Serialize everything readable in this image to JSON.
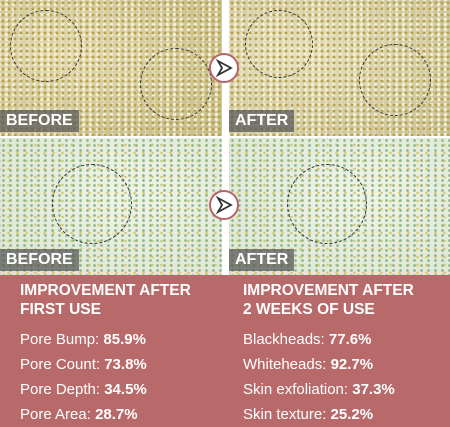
{
  "rows": [
    {
      "before_label": "BEFORE",
      "after_label": "AFTER"
    },
    {
      "before_label": "BEFORE",
      "after_label": "AFTER"
    }
  ],
  "results": [
    {
      "heading": [
        "IMPROVEMENT AFTER",
        "FIRST USE"
      ],
      "items": [
        {
          "label": "Pore Bump:",
          "value": "85.9%"
        },
        {
          "label": "Pore Count:",
          "value": "73.8%"
        },
        {
          "label": "Pore Depth:",
          "value": "34.5%"
        },
        {
          "label": "Pore Area:",
          "value": "28.7%"
        }
      ]
    },
    {
      "heading": [
        "IMPROVEMENT AFTER",
        "2 WEEKS OF USE"
      ],
      "items": [
        {
          "label": "Blackheads:",
          "value": "77.6%"
        },
        {
          "label": "Whiteheads:",
          "value": "92.7%"
        },
        {
          "label": "Skin exfoliation:",
          "value": "37.3%"
        },
        {
          "label": "Skin texture:",
          "value": "25.2%"
        }
      ]
    }
  ]
}
